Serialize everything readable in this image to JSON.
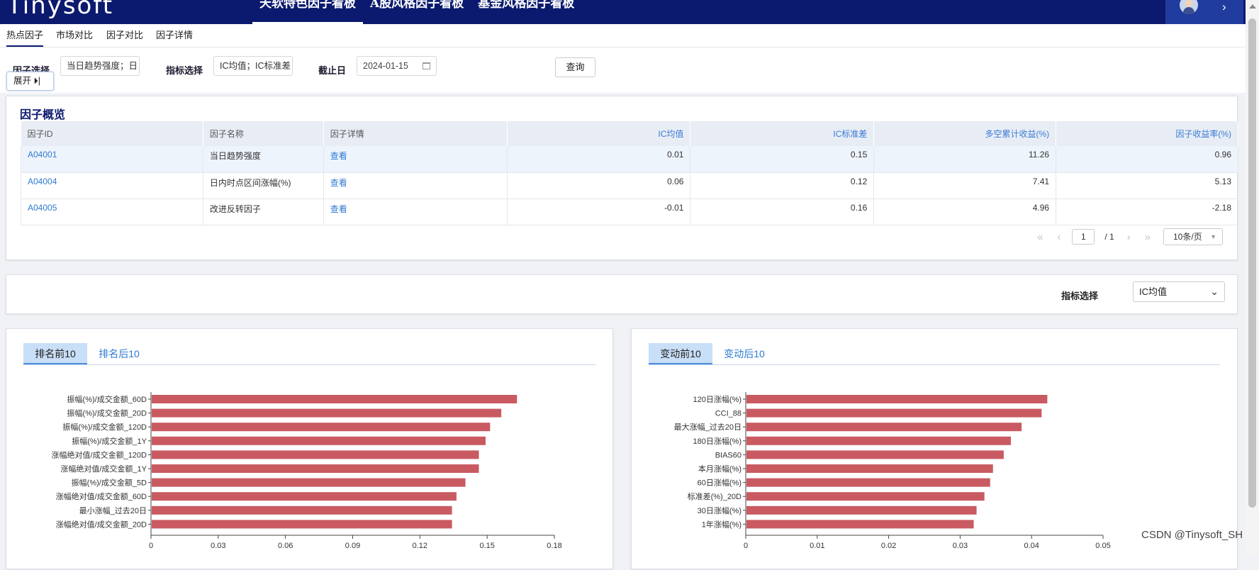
{
  "header": {
    "logo": "Tinysoft",
    "nav": [
      "天软特色因子看板",
      "A股风格因子看板",
      "基金风格因子看板"
    ]
  },
  "subnav": {
    "tabs": [
      "热点因子",
      "市场对比",
      "因子对比",
      "因子详情"
    ]
  },
  "filters": {
    "factor_label": "因子选择",
    "factor_value": "当日趋势强度；日",
    "indicator_label": "指标选择",
    "indicator_value": "IC均值；IC标准差",
    "date_label": "截止日",
    "date_value": "2024-01-15",
    "query_button": "查询",
    "expand_button": "展开 ⏵|"
  },
  "overview": {
    "title": "因子概览",
    "columns": [
      "因子ID",
      "因子名称",
      "因子详情",
      "IC均值",
      "IC标准差",
      "多空累计收益(%)",
      "因子收益率(%)"
    ],
    "rows": [
      {
        "id": "A04001",
        "name": "当日趋势强度",
        "detail": "查看",
        "ic_mean": "0.01",
        "ic_std": "0.15",
        "ls_return": "11.26",
        "factor_return": "0.96"
      },
      {
        "id": "A04004",
        "name": "日内时点区间涨幅(%)",
        "detail": "查看",
        "ic_mean": "0.06",
        "ic_std": "0.12",
        "ls_return": "7.41",
        "factor_return": "5.13"
      },
      {
        "id": "A04005",
        "name": "改进反转因子",
        "detail": "查看",
        "ic_mean": "-0.01",
        "ic_std": "0.16",
        "ls_return": "4.96",
        "factor_return": "-2.18"
      }
    ],
    "pager": {
      "first": "«",
      "prev": "‹",
      "page": "1",
      "total": "/ 1",
      "next": "›",
      "last": "»",
      "page_size": "10条/页"
    }
  },
  "indicator": {
    "label": "指标选择",
    "value": "IC均值"
  },
  "left_panel": {
    "tabs": [
      "排名前10",
      "排名后10"
    ]
  },
  "right_panel": {
    "tabs": [
      "变动前10",
      "变动后10"
    ]
  },
  "watermark": "CSDN @Tinysoft_SH",
  "chart_data": [
    {
      "type": "bar",
      "orientation": "horizontal",
      "bar_color": "#c95a62",
      "categories": [
        "振幅(%)/成交金额_60D",
        "振幅(%)/成交金额_20D",
        "振幅(%)/成交金额_120D",
        "振幅(%)/成交金额_1Y",
        "涨幅绝对值/成交金额_120D",
        "涨幅绝对值/成交金额_1Y",
        "振幅(%)/成交金额_5D",
        "涨幅绝对值/成交金额_60D",
        "最小涨幅_过去20日",
        "涨幅绝对值/成交金额_20D"
      ],
      "values": [
        0.163,
        0.156,
        0.151,
        0.149,
        0.146,
        0.146,
        0.14,
        0.136,
        0.134,
        0.134
      ],
      "xlim": [
        0,
        0.18
      ],
      "xticks": [
        "0",
        "0.03",
        "0.06",
        "0.09",
        "0.12",
        "0.15",
        "0.18"
      ]
    },
    {
      "type": "bar",
      "orientation": "horizontal",
      "bar_color": "#c95a62",
      "categories": [
        "120日涨幅(%)",
        "CCI_88",
        "最大涨幅_过去20日",
        "180日涨幅(%)",
        "BIAS60",
        "本月涨幅(%)",
        "60日涨幅(%)",
        "标准差(%)_20D",
        "30日涨幅(%)",
        "1年涨幅(%)"
      ],
      "values": [
        0.0421,
        0.0413,
        0.0385,
        0.037,
        0.036,
        0.0345,
        0.0341,
        0.0333,
        0.0322,
        0.0318
      ],
      "xlim": [
        0,
        0.05
      ],
      "xticks": [
        "0",
        "0.01",
        "0.02",
        "0.03",
        "0.04",
        "0.05"
      ]
    }
  ]
}
